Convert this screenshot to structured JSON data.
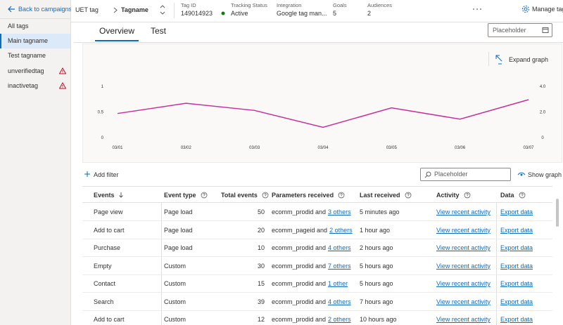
{
  "nav": {
    "back": "Back to campaigns",
    "items": [
      "All tags",
      "Main tagname",
      "Test tagname",
      "unverifiedtag",
      "inactivetag"
    ]
  },
  "header": {
    "crumbs": [
      "UET tag",
      "Tagname"
    ],
    "fields": [
      {
        "label": "Tag ID",
        "value": "149014923"
      },
      {
        "label": "Tracking Status",
        "value": "Active"
      },
      {
        "label": "Integration",
        "value": "Google tag man..."
      },
      {
        "label": "Goals",
        "value": "5"
      },
      {
        "label": "Audiences",
        "value": "2"
      }
    ],
    "manage": "Manage tag"
  },
  "tabs": [
    "Overview",
    "Test"
  ],
  "date_placeholder": "Placeholder",
  "expand": "Expand graph",
  "chart_data": {
    "type": "line",
    "x": [
      "03/01",
      "03/02",
      "03/03",
      "03/04",
      "03/05",
      "03/06",
      "03/07"
    ],
    "series": [
      {
        "color": "#c4319b",
        "values": [
          0.47,
          0.67,
          0.53,
          0.2,
          0.58,
          0.36,
          0.74
        ]
      }
    ],
    "ylim": [
      0,
      1
    ],
    "yticks": [
      0,
      0.5,
      1
    ],
    "y2lim": [
      0,
      4
    ],
    "y2ticks": [
      0,
      {
        "value": 2,
        "label": "2.0"
      },
      {
        "value": 4,
        "label": "4.0"
      }
    ]
  },
  "toolbar": {
    "add_filter": "Add filter",
    "search": "Placeholder",
    "show_graph": "Show graph"
  },
  "table": {
    "columns": [
      "Events",
      "Event type",
      "Total events",
      "Parameters received",
      "Last received",
      "Activity",
      "Data"
    ],
    "rows": [
      {
        "event": "Page view",
        "type": "Page load",
        "total": 50,
        "params": "ecomm_prodid and",
        "params_link": "3 others",
        "last": "5 minutes ago",
        "activity": "View recent activity",
        "data": "Export data"
      },
      {
        "event": "Add to cart",
        "type": "Page load",
        "total": 20,
        "params": "ecomm_pageid and",
        "params_link": "2 others",
        "last": "1 hour ago",
        "activity": "View recent activity",
        "data": "Export data"
      },
      {
        "event": "Purchase",
        "type": "Page load",
        "total": 10,
        "params": "ecomm_prodid and",
        "params_link": "4 others",
        "last": "2 hours ago",
        "activity": "View recent activity",
        "data": "Export data"
      },
      {
        "event": "Empty",
        "type": "Custom",
        "total": 30,
        "params": "ecomm_prodid and",
        "params_link": "7 others",
        "last": "5 hours ago",
        "activity": "View recent activity",
        "data": "Export data"
      },
      {
        "event": "Contact",
        "type": "Custom",
        "total": 15,
        "params": "ecomm_prodid and",
        "params_link": "1 other",
        "last": "5 hours ago",
        "activity": "View recent activity",
        "data": "Export data"
      },
      {
        "event": "Search",
        "type": "Custom",
        "total": 39,
        "params": "ecomm_prodid and",
        "params_link": "4 others",
        "last": "7 hours ago",
        "activity": "View recent activity",
        "data": "Export data"
      },
      {
        "event": "Add to cart",
        "type": "Custom",
        "total": 12,
        "params": "ecomm_prodid and",
        "params_link": "2 others",
        "last": "10 hours ago",
        "activity": "View recent activity",
        "data": "Export data"
      }
    ]
  }
}
